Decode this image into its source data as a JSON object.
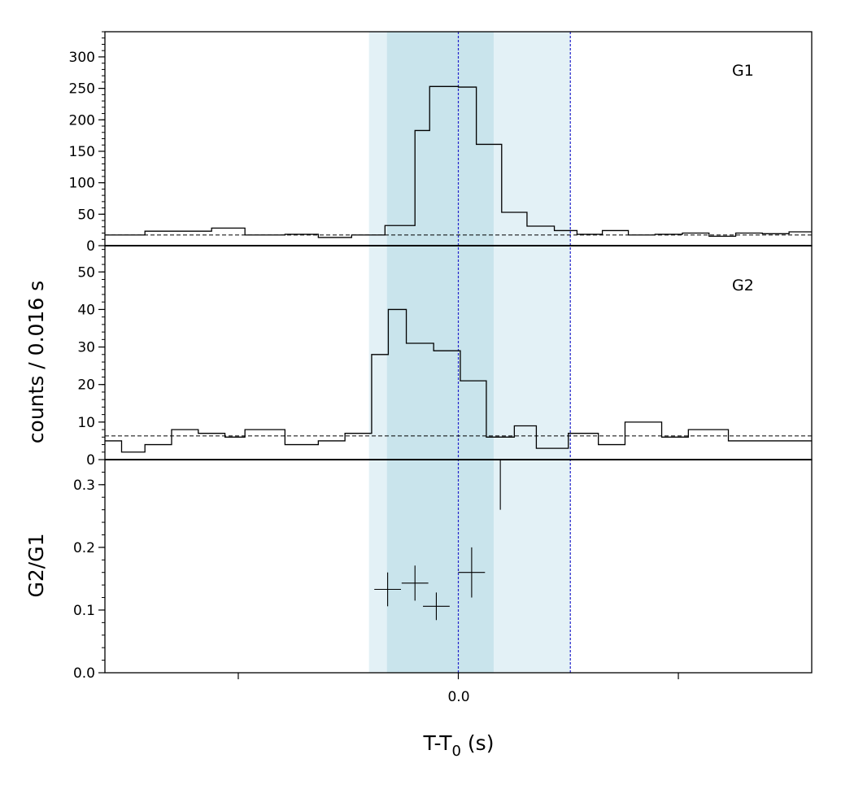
{
  "chart_data": [
    {
      "type": "line",
      "panel": "top",
      "label": "G1",
      "step_edges": [
        -0.53,
        -0.47,
        -0.42,
        -0.37,
        -0.32,
        -0.26,
        -0.21,
        -0.16,
        -0.11,
        -0.065,
        -0.043,
        0.0,
        0.027,
        0.065,
        0.103,
        0.144,
        0.178,
        0.216,
        0.255,
        0.295,
        0.336,
        0.376,
        0.416,
        0.456,
        0.496,
        0.53
      ],
      "counts": [
        17,
        23,
        23,
        28,
        17,
        18,
        13,
        17,
        32,
        183,
        253,
        252,
        161,
        53,
        31,
        24,
        18,
        24,
        17,
        18,
        20,
        15,
        20,
        19,
        22
      ],
      "background_level": 17,
      "ylim": [
        0,
        340
      ],
      "yticks": [
        0,
        50,
        100,
        150,
        200,
        250,
        300
      ]
    },
    {
      "type": "line",
      "panel": "middle",
      "label": "G2",
      "step_edges": [
        -0.53,
        -0.505,
        -0.47,
        -0.43,
        -0.39,
        -0.35,
        -0.32,
        -0.26,
        -0.21,
        -0.17,
        -0.13,
        -0.105,
        -0.078,
        -0.037,
        0.003,
        0.042,
        0.084,
        0.117,
        0.165,
        0.21,
        0.25,
        0.305,
        0.345,
        0.36,
        0.405,
        0.49,
        0.53
      ],
      "counts": [
        5,
        2,
        4,
        8,
        7,
        6,
        8,
        4,
        5,
        7,
        28,
        40,
        31,
        29,
        21,
        6,
        9,
        3,
        7,
        4,
        10,
        6,
        8,
        8,
        5,
        5
      ],
      "background_level": 6.3,
      "ylim": [
        0,
        57
      ],
      "yticks": [
        0,
        10,
        20,
        30,
        40,
        50
      ]
    },
    {
      "type": "scatter",
      "panel": "bottom",
      "ylabel": "G2/G1",
      "x": [
        -0.106,
        -0.065,
        -0.033,
        0.02,
        0.063
      ],
      "y": [
        0.133,
        0.143,
        0.106,
        0.16,
        0.3
      ],
      "x_err": [
        0.02,
        0.02,
        0.02,
        0.02,
        0.0
      ],
      "y_err": [
        0.027,
        0.028,
        0.022,
        0.04,
        0.04
      ],
      "ylim": [
        0,
        0.34
      ],
      "yticks": [
        "0.0",
        "0.1",
        "0.2",
        "0.3"
      ]
    }
  ],
  "shared": {
    "xlim": [
      -0.53,
      0.53
    ],
    "xtick_labels": [
      "0.0"
    ],
    "xlabel_main": "T-T",
    "xlabel_sub": "0",
    "xlabel_unit": " (s)",
    "ylabel_top": "counts /  0.016 s",
    "shaded_outer": [
      -0.134,
      0.168
    ],
    "shaded_inner": [
      -0.107,
      0.053
    ],
    "vlines": [
      0.0,
      0.168
    ],
    "colors": {
      "outer_band": "#e3f1f6",
      "inner_band": "#c9e4ec",
      "vline": "#2222cc",
      "step": "#000000",
      "background_line": "#000000"
    }
  },
  "labels": {
    "g1": "G1",
    "g2": "G2",
    "ratio_ylabel": "G2/G1",
    "counts_ylabel": "counts /  0.016 s",
    "x_tick_zero": "0.0"
  }
}
